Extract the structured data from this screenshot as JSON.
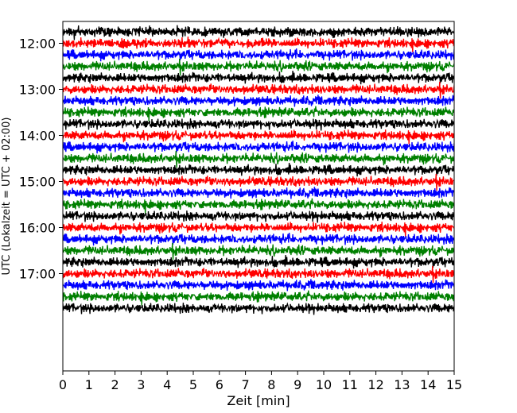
{
  "chart_data": {
    "type": "line",
    "title": "",
    "xlabel": "Zeit  [min]",
    "ylabel": "UTC (Lokalzeit = UTC + 02:00)",
    "xlim": [
      0,
      15
    ],
    "x_ticks": [
      0,
      1,
      2,
      3,
      4,
      5,
      6,
      7,
      8,
      9,
      10,
      11,
      12,
      13,
      14,
      15
    ],
    "x_tick_labels": [
      "0",
      "1",
      "2",
      "3",
      "4",
      "5",
      "6",
      "7",
      "8",
      "9",
      "10",
      "11",
      "12",
      "13",
      "14",
      "15"
    ],
    "y_ticks": [
      "12:00",
      "13:00",
      "14:00",
      "15:00",
      "16:00",
      "17:00"
    ],
    "start_time": "11:45",
    "trace_interval_min": 15,
    "trace_count": 25,
    "row_colors": [
      "#000000",
      "#ff0000",
      "#0000ff",
      "#008000"
    ],
    "grid": false,
    "legend": "none"
  }
}
